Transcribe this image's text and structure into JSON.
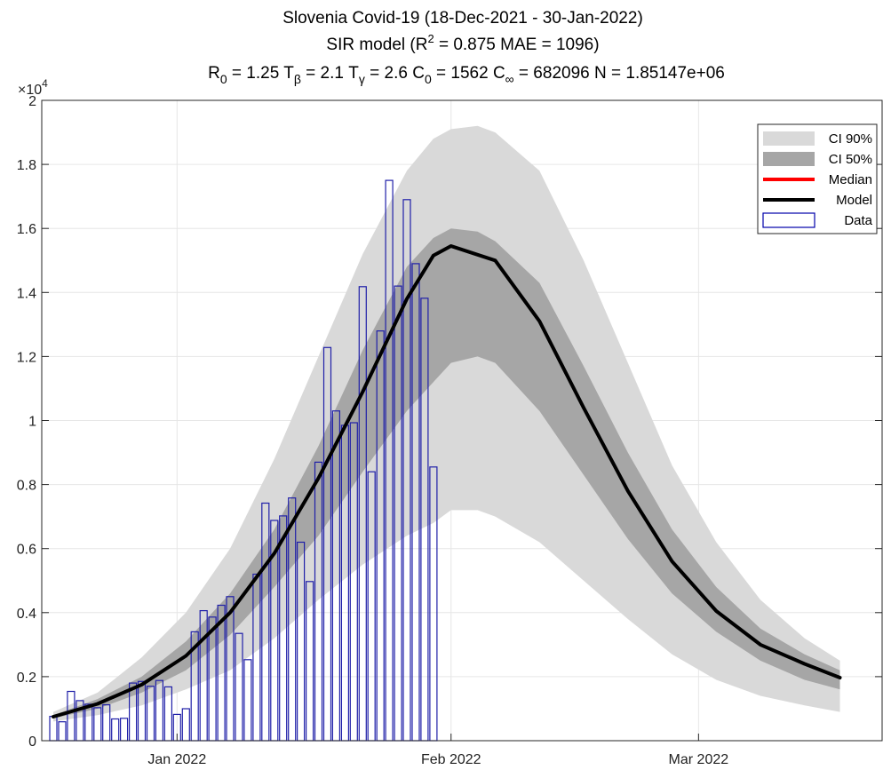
{
  "chart_data": {
    "type": "bar+line+area",
    "title": {
      "line1": "Slovenia Covid-19 (18-Dec-2021 - 30-Jan-2022)",
      "line2": {
        "prefix": "SIR model (R",
        "sup": "2",
        "suffix": " = 0.875   MAE = 1096)"
      },
      "params": [
        {
          "base": "R",
          "sub": "0",
          "value": " = 1.25"
        },
        {
          "base": "T",
          "sub": "β",
          "value": " = 2.1"
        },
        {
          "base": "T",
          "sub": "γ",
          "value": " = 2.6"
        },
        {
          "base": "C",
          "sub": "0",
          "value": " = 1562"
        },
        {
          "base": "C",
          "sub": "∞",
          "value": " = 682096"
        },
        {
          "base": "N",
          "sub": "",
          "value": " = 1.85147e+06"
        }
      ]
    },
    "y_exponent": {
      "base": "×10",
      "exp": "4"
    },
    "xlim": [
      0,
      95
    ],
    "ylim": [
      0,
      2
    ],
    "grid": true,
    "x_ticks": [
      {
        "day": 14,
        "label": "Jan 2022"
      },
      {
        "day": 45,
        "label": "Feb 2022"
      },
      {
        "day": 73,
        "label": "Mar 2022"
      }
    ],
    "y_ticks": [
      0,
      0.2,
      0.4,
      0.6,
      0.8,
      1,
      1.2,
      1.4,
      1.6,
      1.8,
      2
    ],
    "y_tick_labels": [
      "0",
      "0.2",
      "0.4",
      "0.6",
      "0.8",
      "1",
      "1.2",
      "1.4",
      "1.6",
      "1.8",
      "2"
    ],
    "legend": {
      "position": "top-right",
      "entries": [
        {
          "label": "CI 90%",
          "kind": "patch",
          "color": "#d9d9d9"
        },
        {
          "label": "CI 50%",
          "kind": "patch",
          "color": "#a6a6a6"
        },
        {
          "label": "Median",
          "kind": "line",
          "color": "#ff0000"
        },
        {
          "label": "Model",
          "kind": "line",
          "color": "#000000"
        },
        {
          "label": "Data",
          "kind": "box",
          "color": "#0000aa"
        }
      ]
    },
    "data_bars": {
      "name": "Data",
      "color": "#1f1fa8",
      "start_day": 0,
      "values": [
        0.076,
        0.059,
        0.154,
        0.125,
        0.114,
        0.103,
        0.112,
        0.068,
        0.07,
        0.18,
        0.185,
        0.17,
        0.188,
        0.168,
        0.082,
        0.1,
        0.34,
        0.406,
        0.386,
        0.423,
        0.45,
        0.335,
        0.253,
        0.52,
        0.742,
        0.688,
        0.702,
        0.758,
        0.62,
        0.497,
        0.87,
        1.228,
        1.03,
        0.985,
        0.993,
        1.418,
        0.84,
        1.28,
        1.75,
        1.42,
        1.69,
        1.49,
        1.382,
        0.855
      ]
    },
    "model": {
      "name": "Model",
      "color": "#000000",
      "day": [
        0,
        5,
        10,
        15,
        20,
        25,
        30,
        35,
        40,
        43,
        45,
        50,
        55,
        60,
        65,
        70,
        75,
        80,
        85,
        89
      ],
      "value": [
        0.075,
        0.115,
        0.175,
        0.265,
        0.4,
        0.585,
        0.82,
        1.09,
        1.38,
        1.515,
        1.545,
        1.5,
        1.31,
        1.04,
        0.78,
        0.56,
        0.405,
        0.3,
        0.24,
        0.197
      ]
    },
    "median": {
      "name": "Median",
      "color": "#ff0000",
      "day": [
        0,
        5,
        10,
        15,
        20,
        25,
        30,
        35,
        40,
        43,
        45,
        50,
        55,
        60,
        65,
        70,
        75,
        80,
        85,
        89
      ],
      "value": [
        0.075,
        0.115,
        0.175,
        0.265,
        0.4,
        0.585,
        0.82,
        1.09,
        1.38,
        1.515,
        1.545,
        1.5,
        1.31,
        1.04,
        0.78,
        0.56,
        0.405,
        0.3,
        0.24,
        0.197
      ]
    },
    "ci90": {
      "name": "CI 90%",
      "color": "#d9d9d9",
      "day": [
        0,
        5,
        10,
        15,
        20,
        25,
        30,
        35,
        40,
        43,
        45,
        48,
        50,
        55,
        60,
        65,
        70,
        75,
        80,
        85,
        89
      ],
      "lower": [
        0.06,
        0.08,
        0.11,
        0.16,
        0.22,
        0.32,
        0.44,
        0.55,
        0.64,
        0.68,
        0.72,
        0.72,
        0.7,
        0.62,
        0.5,
        0.38,
        0.27,
        0.19,
        0.14,
        0.11,
        0.09
      ],
      "upper": [
        0.09,
        0.15,
        0.26,
        0.4,
        0.6,
        0.88,
        1.2,
        1.52,
        1.78,
        1.88,
        1.91,
        1.92,
        1.9,
        1.78,
        1.5,
        1.18,
        0.86,
        0.62,
        0.44,
        0.32,
        0.25
      ]
    },
    "ci50": {
      "name": "CI 50%",
      "color": "#a6a6a6",
      "day": [
        0,
        5,
        10,
        15,
        20,
        25,
        30,
        35,
        40,
        43,
        45,
        48,
        50,
        55,
        60,
        65,
        70,
        75,
        80,
        85,
        89
      ],
      "lower": [
        0.07,
        0.1,
        0.15,
        0.22,
        0.33,
        0.48,
        0.64,
        0.84,
        1.03,
        1.12,
        1.18,
        1.2,
        1.18,
        1.03,
        0.83,
        0.63,
        0.46,
        0.34,
        0.25,
        0.19,
        0.16
      ],
      "upper": [
        0.08,
        0.13,
        0.2,
        0.31,
        0.46,
        0.66,
        0.92,
        1.22,
        1.48,
        1.57,
        1.6,
        1.59,
        1.56,
        1.43,
        1.17,
        0.9,
        0.66,
        0.48,
        0.35,
        0.27,
        0.22
      ]
    }
  }
}
